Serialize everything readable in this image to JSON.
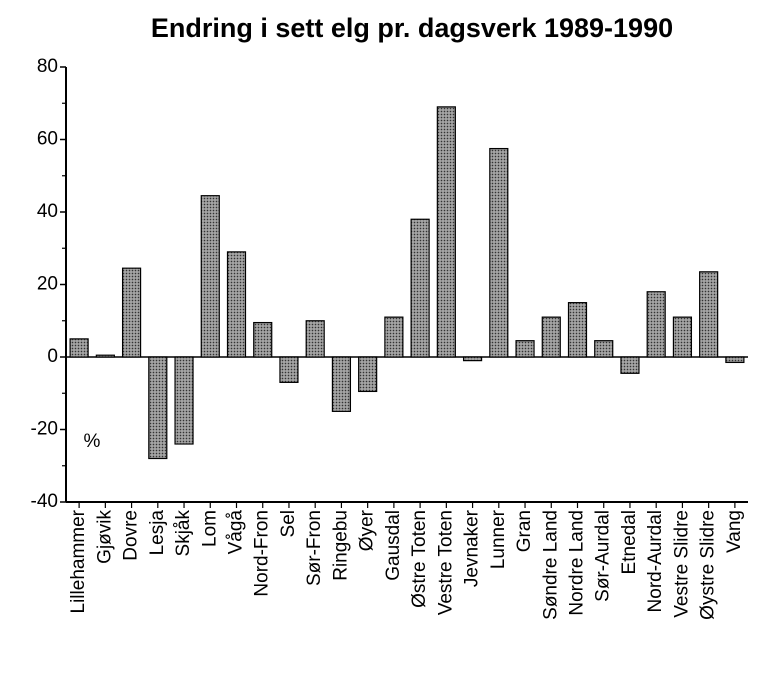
{
  "chart_data": {
    "type": "bar",
    "title": "Endring i sett elg pr. dagsverk 1989-1990",
    "annotation": "%",
    "categories": [
      "Lillehammer",
      "Gjøvik",
      "Dovre",
      "Lesja",
      "Skjåk",
      "Lom",
      "Vågå",
      "Nord-Fron",
      "Sel",
      "Sør-Fron",
      "Ringebu",
      "Øyer",
      "Gausdal",
      "Østre Toten",
      "Vestre Toten",
      "Jevnaker",
      "Lunner",
      "Gran",
      "Søndre Land",
      "Nordre Land",
      "Sør-Aurdal",
      "Etnedal",
      "Nord-Aurdal",
      "Vestre Slidre",
      "Øystre Slidre",
      "Vang"
    ],
    "values": [
      5,
      0.5,
      24.5,
      -28,
      -24,
      44.5,
      29,
      9.5,
      -7,
      10,
      -15,
      -9.5,
      11,
      38,
      69,
      -1,
      57.5,
      4.5,
      11,
      15,
      4.5,
      -4.5,
      18,
      11,
      23.5,
      -1.5
    ],
    "color": "#8a8a8a",
    "ylim": [
      -40,
      80
    ],
    "yticks": [
      -40,
      -20,
      0,
      20,
      40,
      60,
      80
    ],
    "grid": false
  }
}
